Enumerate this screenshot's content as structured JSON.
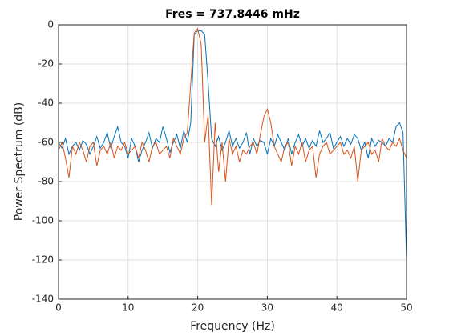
{
  "chart_data": {
    "type": "line",
    "title": "Fres = 737.8446 mHz",
    "x_label": "Frequency (Hz)",
    "y_label": "Power Spectrum (dB)",
    "xlim": [
      0,
      50
    ],
    "ylim": [
      -140,
      0
    ],
    "xticks": [
      0,
      10,
      20,
      30,
      40,
      50
    ],
    "yticks": [
      -140,
      -120,
      -100,
      -80,
      -60,
      -40,
      -20,
      0
    ],
    "grid": true,
    "x": [
      0,
      0.5,
      1,
      1.5,
      2,
      2.5,
      3,
      3.5,
      4,
      4.5,
      5,
      5.5,
      6,
      6.5,
      7,
      7.5,
      8,
      8.5,
      9,
      9.5,
      10,
      10.5,
      11,
      11.5,
      12,
      12.5,
      13,
      13.5,
      14,
      14.5,
      15,
      15.5,
      16,
      16.5,
      17,
      17.5,
      18,
      18.5,
      19,
      19.5,
      20,
      20.5,
      21,
      21.5,
      22,
      22.5,
      23,
      23.5,
      24,
      24.5,
      25,
      25.5,
      26,
      26.5,
      27,
      27.5,
      28,
      28.5,
      29,
      29.5,
      30,
      30.5,
      31,
      31.5,
      32,
      32.5,
      33,
      33.5,
      34,
      34.5,
      35,
      35.5,
      36,
      36.5,
      37,
      37.5,
      38,
      38.5,
      39,
      39.5,
      40,
      40.5,
      41,
      41.5,
      42,
      42.5,
      43,
      43.5,
      44,
      44.5,
      45,
      45.5,
      46,
      46.5,
      47,
      47.5,
      48,
      48.5,
      49,
      49.5,
      50
    ],
    "series": [
      {
        "color": "#0072bd",
        "values": [
          -60,
          -63,
          -58,
          -66,
          -62,
          -60,
          -64,
          -59,
          -61,
          -66,
          -62,
          -57,
          -63,
          -60,
          -55,
          -63,
          -57,
          -52,
          -60,
          -62,
          -68,
          -58,
          -62,
          -70,
          -64,
          -60,
          -55,
          -63,
          -58,
          -60,
          -52,
          -58,
          -65,
          -60,
          -56,
          -63,
          -54,
          -60,
          -50,
          -5,
          -3,
          -3,
          -5,
          -30,
          -58,
          -62,
          -57,
          -64,
          -60,
          -54,
          -62,
          -58,
          -63,
          -60,
          -55,
          -66,
          -58,
          -62,
          -59,
          -60,
          -66,
          -58,
          -62,
          -56,
          -60,
          -64,
          -58,
          -66,
          -60,
          -56,
          -62,
          -58,
          -63,
          -59,
          -62,
          -54,
          -60,
          -58,
          -55,
          -63,
          -60,
          -57,
          -62,
          -58,
          -61,
          -56,
          -58,
          -64,
          -60,
          -68,
          -58,
          -62,
          -59,
          -60,
          -62,
          -58,
          -60,
          -52,
          -50,
          -55,
          -120
        ]
      },
      {
        "color": "#d95319",
        "values": [
          -64,
          -60,
          -68,
          -78,
          -62,
          -66,
          -60,
          -64,
          -70,
          -62,
          -60,
          -72,
          -64,
          -62,
          -66,
          -60,
          -68,
          -62,
          -64,
          -60,
          -66,
          -64,
          -62,
          -68,
          -60,
          -64,
          -70,
          -62,
          -60,
          -66,
          -64,
          -62,
          -68,
          -58,
          -62,
          -66,
          -58,
          -55,
          -30,
          -4,
          -2,
          -10,
          -60,
          -46,
          -92,
          -50,
          -75,
          -60,
          -80,
          -58,
          -66,
          -62,
          -70,
          -64,
          -66,
          -62,
          -60,
          -66,
          -56,
          -47,
          -43,
          -50,
          -62,
          -66,
          -70,
          -62,
          -60,
          -72,
          -62,
          -66,
          -60,
          -70,
          -64,
          -62,
          -78,
          -66,
          -62,
          -60,
          -66,
          -64,
          -62,
          -60,
          -66,
          -64,
          -68,
          -62,
          -80,
          -64,
          -62,
          -60,
          -66,
          -64,
          -70,
          -58,
          -62,
          -64,
          -60,
          -62,
          -58,
          -64,
          -68
        ]
      }
    ]
  }
}
